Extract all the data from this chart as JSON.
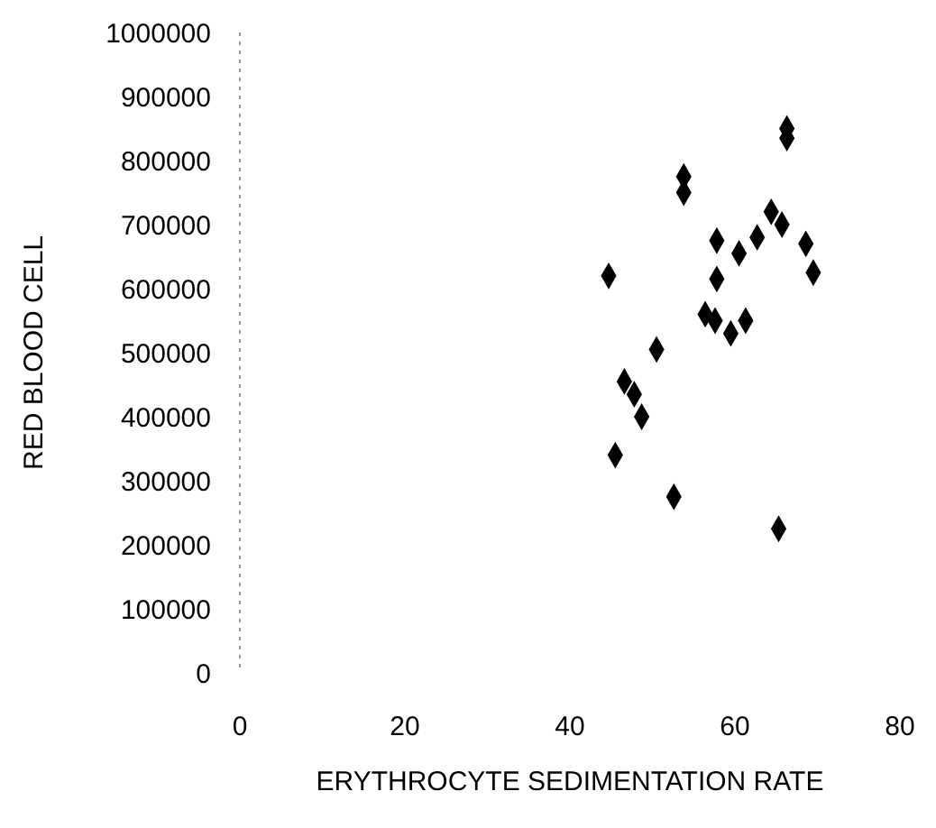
{
  "chart_data": {
    "type": "scatter",
    "xlabel": "ERYTHROCYTE SEDIMENTATION RATE",
    "ylabel": "RED BLOOD CELL",
    "x": [
      66.3,
      66.3,
      53.8,
      53.8,
      64.4,
      65.7,
      62.7,
      57.8,
      60.5,
      68.6,
      69.5,
      44.7,
      57.8,
      56.4,
      57.6,
      61.3,
      59.5,
      50.5,
      46.6,
      47.8,
      48.7,
      45.5,
      52.6,
      65.3
    ],
    "values": [
      850000,
      835000,
      775000,
      750000,
      720000,
      700000,
      680000,
      675000,
      655000,
      670000,
      625000,
      620000,
      615000,
      560000,
      550000,
      550000,
      530000,
      505000,
      455000,
      435000,
      400000,
      340000,
      275000,
      225000
    ],
    "color": "#000000",
    "marker": "diamond",
    "xlim": [
      0,
      80
    ],
    "xticks": [
      0,
      20,
      40,
      60,
      80
    ],
    "ylim": [
      0,
      1000000
    ],
    "yticks": [
      0,
      100000,
      200000,
      300000,
      400000,
      500000,
      600000,
      700000,
      800000,
      900000,
      1000000
    ],
    "grid": false
  }
}
